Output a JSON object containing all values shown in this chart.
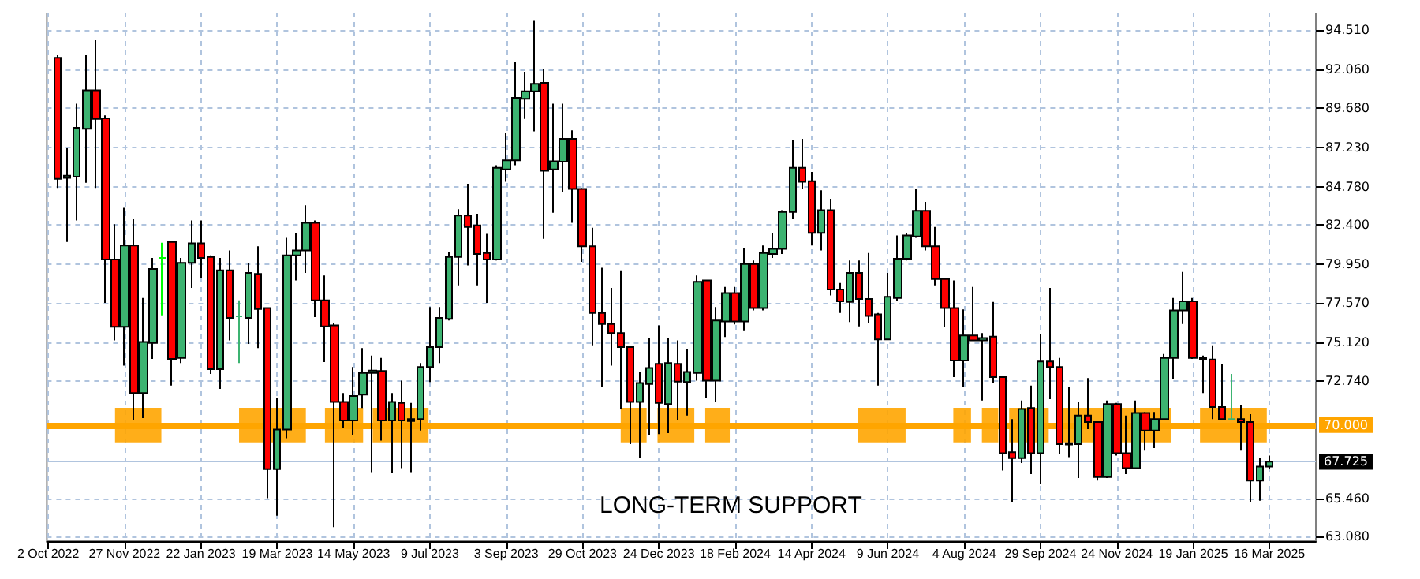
{
  "chart_data": {
    "type": "candlestick",
    "x": [
      "2022-10-09",
      "2022-10-16",
      "2022-10-23",
      "2022-10-30",
      "2022-11-06",
      "2022-11-13",
      "2022-11-20",
      "2022-11-27",
      "2022-12-04",
      "2022-12-11",
      "2022-12-18",
      "2022-12-25",
      "2023-01-01",
      "2023-01-08",
      "2023-01-15",
      "2023-01-22",
      "2023-01-29",
      "2023-02-05",
      "2023-02-12",
      "2023-02-19",
      "2023-02-26",
      "2023-03-05",
      "2023-03-12",
      "2023-03-19",
      "2023-03-26",
      "2023-04-02",
      "2023-04-09",
      "2023-04-16",
      "2023-04-23",
      "2023-04-30",
      "2023-05-07",
      "2023-05-14",
      "2023-05-21",
      "2023-05-28",
      "2023-06-04",
      "2023-06-11",
      "2023-06-18",
      "2023-06-25",
      "2023-07-02",
      "2023-07-09",
      "2023-07-16",
      "2023-07-23",
      "2023-07-30",
      "2023-08-06",
      "2023-08-13",
      "2023-08-20",
      "2023-08-27",
      "2023-09-03",
      "2023-09-10",
      "2023-09-17",
      "2023-09-24",
      "2023-10-01",
      "2023-10-08",
      "2023-10-15",
      "2023-10-22",
      "2023-10-29",
      "2023-11-05",
      "2023-11-12",
      "2023-11-19",
      "2023-11-26",
      "2023-12-03",
      "2023-12-10",
      "2023-12-17",
      "2023-12-24",
      "2023-12-31",
      "2024-01-07",
      "2024-01-14",
      "2024-01-21",
      "2024-01-28",
      "2024-02-04",
      "2024-02-11",
      "2024-02-18",
      "2024-02-25",
      "2024-03-03",
      "2024-03-10",
      "2024-03-17",
      "2024-03-24",
      "2024-03-31",
      "2024-04-07",
      "2024-04-14",
      "2024-04-21",
      "2024-04-28",
      "2024-05-05",
      "2024-05-12",
      "2024-05-19",
      "2024-05-26",
      "2024-06-02",
      "2024-06-09",
      "2024-06-16",
      "2024-06-23",
      "2024-06-30",
      "2024-07-07",
      "2024-07-14",
      "2024-07-21",
      "2024-07-28",
      "2024-08-04",
      "2024-08-11",
      "2024-08-18",
      "2024-08-25",
      "2024-09-01",
      "2024-09-08",
      "2024-09-15",
      "2024-09-22",
      "2024-09-29",
      "2024-10-06",
      "2024-10-13",
      "2024-10-20",
      "2024-10-27",
      "2024-11-03",
      "2024-11-10",
      "2024-11-17",
      "2024-11-24",
      "2024-12-01",
      "2024-12-08",
      "2024-12-15",
      "2024-12-22",
      "2024-12-29",
      "2025-01-05",
      "2025-01-12",
      "2025-01-19",
      "2025-01-26",
      "2025-02-02",
      "2025-02-09",
      "2025-02-16",
      "2025-02-23",
      "2025-03-02",
      "2025-03-09",
      "2025-03-16"
    ],
    "ohlc": [
      [
        92.78,
        92.94,
        84.71,
        85.27
      ],
      [
        85.33,
        87.19,
        81.36,
        85.46
      ],
      [
        85.4,
        89.93,
        82.69,
        88.44
      ],
      [
        88.37,
        92.94,
        85.02,
        90.76
      ],
      [
        90.76,
        93.87,
        84.71,
        88.99
      ],
      [
        89.03,
        89.21,
        77.57,
        80.27
      ],
      [
        80.27,
        82.45,
        75.25,
        76.09
      ],
      [
        76.09,
        83.47,
        73.69,
        81.14
      ],
      [
        81.14,
        82.79,
        70.28,
        71.99
      ],
      [
        71.99,
        77.88,
        70.43,
        75.15
      ],
      [
        75.09,
        80.37,
        74.1,
        79.68
      ],
      [
        80.37,
        81.3,
        76.8,
        80.37
      ],
      [
        81.36,
        81.36,
        72.45,
        74.1
      ],
      [
        74.16,
        80.37,
        73.85,
        80.06
      ],
      [
        80.06,
        82.69,
        78.5,
        81.27
      ],
      [
        81.27,
        82.69,
        79.13,
        80.37
      ],
      [
        80.43,
        80.52,
        73.17,
        73.47
      ],
      [
        73.47,
        80.37,
        72.24,
        79.59
      ],
      [
        79.59,
        80.83,
        75.25,
        76.64
      ],
      [
        76.74,
        77.73,
        73.85,
        76.74
      ],
      [
        76.64,
        80.06,
        75.03,
        79.44
      ],
      [
        79.37,
        81.08,
        74.78,
        77.2
      ],
      [
        77.26,
        77.26,
        65.47,
        67.27
      ],
      [
        67.27,
        71.68,
        64.38,
        69.72
      ],
      [
        69.72,
        81.61,
        69.19,
        80.52
      ],
      [
        80.52,
        81.92,
        78.97,
        80.83
      ],
      [
        80.83,
        83.63,
        79.44,
        82.54
      ],
      [
        82.54,
        82.69,
        76.7,
        77.73
      ],
      [
        77.73,
        79.28,
        73.91,
        76.12
      ],
      [
        76.18,
        76.33,
        63.67,
        71.43
      ],
      [
        71.43,
        71.99,
        69.81,
        70.28
      ],
      [
        70.28,
        73.6,
        69.35,
        71.8
      ],
      [
        71.89,
        74.78,
        71.06,
        73.23
      ],
      [
        73.23,
        74.31,
        67.08,
        73.38
      ],
      [
        73.35,
        74.16,
        69.04,
        70.28
      ],
      [
        70.28,
        71.99,
        67.02,
        71.43
      ],
      [
        71.37,
        72.76,
        67.33,
        70.28
      ],
      [
        70.25,
        71.37,
        67.08,
        70.37
      ],
      [
        70.37,
        73.85,
        69.66,
        73.6
      ],
      [
        73.6,
        77.32,
        72.67,
        74.84
      ],
      [
        74.84,
        77.32,
        73.85,
        76.64
      ],
      [
        76.58,
        80.74,
        76.49,
        80.43
      ],
      [
        80.43,
        83.38,
        78.66,
        83.0
      ],
      [
        83.0,
        84.96,
        79.9,
        82.29
      ],
      [
        82.38,
        83.1,
        78.66,
        80.61
      ],
      [
        80.67,
        81.86,
        77.57,
        80.27
      ],
      [
        80.27,
        86.11,
        80.21,
        85.95
      ],
      [
        85.86,
        88.13,
        85.08,
        86.42
      ],
      [
        86.42,
        92.53,
        86.11,
        90.3
      ],
      [
        90.24,
        91.91,
        88.99,
        90.7
      ],
      [
        90.7,
        95.11,
        88.22,
        91.17
      ],
      [
        91.23,
        92.1,
        81.55,
        85.77
      ],
      [
        85.86,
        89.93,
        83.16,
        86.36
      ],
      [
        86.33,
        89.93,
        84.46,
        87.75
      ],
      [
        87.75,
        88.28,
        82.54,
        84.65
      ],
      [
        84.65,
        84.71,
        80.12,
        81.08
      ],
      [
        81.08,
        82.23,
        74.94,
        76.95
      ],
      [
        76.95,
        79.75,
        72.36,
        76.27
      ],
      [
        76.27,
        78.5,
        73.69,
        75.71
      ],
      [
        75.71,
        79.59,
        70.99,
        74.84
      ],
      [
        74.84,
        74.84,
        68.82,
        71.43
      ],
      [
        71.43,
        73.29,
        67.95,
        72.61
      ],
      [
        72.55,
        75.4,
        69.35,
        73.54
      ],
      [
        73.79,
        76.18,
        69.44,
        71.37
      ],
      [
        71.3,
        75.4,
        69.5,
        73.85
      ],
      [
        73.79,
        75.25,
        70.28,
        72.7
      ],
      [
        72.67,
        74.72,
        70.59,
        73.29
      ],
      [
        73.23,
        79.28,
        72.76,
        78.88
      ],
      [
        78.97,
        78.97,
        71.68,
        72.76
      ],
      [
        72.76,
        77.32,
        71.43,
        76.49
      ],
      [
        76.42,
        78.57,
        75.46,
        78.19
      ],
      [
        78.19,
        78.57,
        76.24,
        76.42
      ],
      [
        76.42,
        80.99,
        75.87,
        79.99
      ],
      [
        79.99,
        80.21,
        77.11,
        77.26
      ],
      [
        77.26,
        81.14,
        77.11,
        80.67
      ],
      [
        80.61,
        81.92,
        80.37,
        80.93
      ],
      [
        80.93,
        83.32,
        80.61,
        83.22
      ],
      [
        83.22,
        87.66,
        82.79,
        85.95
      ],
      [
        85.95,
        87.75,
        84.65,
        85.08
      ],
      [
        85.12,
        85.7,
        81.14,
        81.92
      ],
      [
        81.92,
        84.56,
        80.83,
        83.32
      ],
      [
        83.32,
        84.03,
        78.04,
        78.41
      ],
      [
        78.41,
        78.81,
        76.95,
        77.67
      ],
      [
        77.64,
        80.21,
        76.39,
        79.44
      ],
      [
        79.44,
        80.21,
        76.12,
        77.82
      ],
      [
        77.82,
        80.67,
        76.33,
        76.77
      ],
      [
        76.86,
        76.95,
        72.45,
        75.31
      ],
      [
        75.31,
        79.44,
        75.31,
        77.95
      ],
      [
        77.88,
        81.76,
        77.67,
        80.31
      ],
      [
        80.31,
        81.92,
        80.21,
        81.76
      ],
      [
        81.7,
        84.65,
        81.61,
        83.29
      ],
      [
        83.29,
        83.84,
        80.83,
        81.08
      ],
      [
        81.08,
        82.29,
        78.66,
        79.06
      ],
      [
        79.06,
        79.13,
        76.09,
        77.26
      ],
      [
        77.26,
        78.97,
        72.98,
        74.0
      ],
      [
        74.0,
        77.17,
        72.36,
        75.56
      ],
      [
        75.56,
        78.57,
        75.25,
        75.25
      ],
      [
        75.25,
        75.71,
        71.52,
        75.4
      ],
      [
        75.49,
        77.64,
        72.61,
        72.98
      ],
      [
        72.98,
        72.98,
        67.18,
        68.26
      ],
      [
        68.32,
        70.37,
        65.22,
        67.95
      ],
      [
        67.95,
        71.52,
        67.64,
        70.99
      ],
      [
        71.06,
        72.45,
        66.96,
        68.26
      ],
      [
        68.26,
        75.65,
        66.34,
        73.94
      ],
      [
        73.94,
        78.5,
        71.61,
        73.6
      ],
      [
        73.6,
        74.16,
        68.2,
        68.82
      ],
      [
        68.88,
        72.36,
        68.01,
        68.79
      ],
      [
        68.82,
        71.43,
        66.71,
        70.59
      ],
      [
        70.59,
        72.92,
        69.75,
        70.19
      ],
      [
        70.19,
        70.19,
        66.55,
        66.77
      ],
      [
        66.77,
        71.52,
        66.71,
        71.3
      ],
      [
        71.3,
        71.37,
        68.11,
        68.26
      ],
      [
        68.26,
        70.59,
        66.96,
        67.33
      ],
      [
        67.33,
        71.52,
        67.27,
        70.75
      ],
      [
        70.75,
        70.81,
        68.42,
        69.66
      ],
      [
        69.66,
        70.81,
        68.57,
        70.37
      ],
      [
        70.37,
        74.41,
        70.28,
        74.16
      ],
      [
        74.16,
        77.88,
        72.86,
        77.11
      ],
      [
        77.11,
        79.5,
        76.27,
        77.67
      ],
      [
        77.67,
        77.88,
        74.1,
        74.16
      ],
      [
        74.16,
        74.31,
        71.99,
        74.07
      ],
      [
        74.07,
        74.94,
        70.37,
        71.12
      ],
      [
        71.12,
        73.76,
        70.28,
        70.37
      ],
      [
        70.37,
        73.17,
        70.28,
        70.37
      ],
      [
        70.37,
        71.21,
        68.42,
        70.19
      ],
      [
        70.19,
        70.68,
        65.22,
        66.55
      ],
      [
        66.55,
        67.95,
        65.31,
        67.42
      ],
      [
        67.42,
        68.11,
        67.27,
        67.725
      ]
    ],
    "colors": [
      "#ff0000",
      "#3cb371",
      "#3cb371",
      "#3cb371",
      "#ff0000",
      "#ff0000",
      "#ff0000",
      "#3cb371",
      "#ff0000",
      "#3cb371",
      "#3cb371",
      "#00ff00",
      "#ff0000",
      "#3cb371",
      "#3cb371",
      "#ff0000",
      "#ff0000",
      "#3cb371",
      "#ff0000",
      "#3cb371",
      "#3cb371",
      "#ff0000",
      "#ff0000",
      "#3cb371",
      "#3cb371",
      "#3cb371",
      "#3cb371",
      "#ff0000",
      "#ff0000",
      "#ff0000",
      "#ff0000",
      "#3cb371",
      "#3cb371",
      "#3cb371",
      "#ff0000",
      "#3cb371",
      "#ff0000",
      "#3cb371",
      "#3cb371",
      "#3cb371",
      "#3cb371",
      "#3cb371",
      "#3cb371",
      "#ff0000",
      "#ff0000",
      "#ff0000",
      "#3cb371",
      "#3cb371",
      "#3cb371",
      "#3cb371",
      "#3cb371",
      "#ff0000",
      "#3cb371",
      "#3cb371",
      "#ff0000",
      "#ff0000",
      "#ff0000",
      "#ff0000",
      "#ff0000",
      "#ff0000",
      "#ff0000",
      "#3cb371",
      "#3cb371",
      "#ff0000",
      "#3cb371",
      "#ff0000",
      "#3cb371",
      "#3cb371",
      "#ff0000",
      "#3cb371",
      "#3cb371",
      "#ff0000",
      "#3cb371",
      "#ff0000",
      "#3cb371",
      "#3cb371",
      "#3cb371",
      "#3cb371",
      "#ff0000",
      "#ff0000",
      "#3cb371",
      "#ff0000",
      "#ff0000",
      "#3cb371",
      "#ff0000",
      "#ff0000",
      "#ff0000",
      "#3cb371",
      "#3cb371",
      "#3cb371",
      "#3cb371",
      "#ff0000",
      "#ff0000",
      "#ff0000",
      "#ff0000",
      "#3cb371",
      "#ff0000",
      "#3cb371",
      "#ff0000",
      "#ff0000",
      "#ff0000",
      "#3cb371",
      "#ff0000",
      "#3cb371",
      "#ff0000",
      "#ff0000",
      "#ff0000",
      "#3cb371",
      "#ff0000",
      "#ff0000",
      "#3cb371",
      "#ff0000",
      "#ff0000",
      "#3cb371",
      "#ff0000",
      "#3cb371",
      "#3cb371",
      "#3cb371",
      "#3cb371",
      "#ff0000",
      "#ff0000",
      "#ff0000",
      "#ff0000",
      "#3cb371",
      "#ff0000",
      "#ff0000",
      "#3cb371",
      "#3cb371"
    ],
    "xlim": [
      "2022-10-01",
      "2025-04-19"
    ],
    "xticks": [
      {
        "value": "2022-10-02",
        "label": "2 Oct 2022"
      },
      {
        "value": "2022-11-27",
        "label": "27 Nov 2022"
      },
      {
        "value": "2023-01-22",
        "label": "22 Jan 2023"
      },
      {
        "value": "2023-03-19",
        "label": "19 Mar 2023"
      },
      {
        "value": "2023-05-14",
        "label": "14 May 2023"
      },
      {
        "value": "2023-07-09",
        "label": "9 Jul 2023"
      },
      {
        "value": "2023-09-03",
        "label": "3 Sep 2023"
      },
      {
        "value": "2023-10-29",
        "label": "29 Oct 2023"
      },
      {
        "value": "2023-12-24",
        "label": "24 Dec 2023"
      },
      {
        "value": "2024-02-18",
        "label": "18 Feb 2024"
      },
      {
        "value": "2024-04-14",
        "label": "14 Apr 2024"
      },
      {
        "value": "2024-06-09",
        "label": "9 Jun 2024"
      },
      {
        "value": "2024-08-04",
        "label": "4 Aug 2024"
      },
      {
        "value": "2024-09-29",
        "label": "29 Sep 2024"
      },
      {
        "value": "2024-11-24",
        "label": "24 Nov 2024"
      },
      {
        "value": "2025-01-19",
        "label": "19 Jan 2025"
      },
      {
        "value": "2025-03-16",
        "label": "16 Mar 2025"
      }
    ],
    "ylim": [
      62.8,
      95.58
    ],
    "yticks": [
      {
        "value": 63.08,
        "label": "63.080"
      },
      {
        "value": 65.46,
        "label": "65.460"
      },
      {
        "value": 72.74,
        "label": "72.740"
      },
      {
        "value": 75.12,
        "label": "75.120"
      },
      {
        "value": 77.57,
        "label": "77.570"
      },
      {
        "value": 79.95,
        "label": "79.950"
      },
      {
        "value": 82.4,
        "label": "82.400"
      },
      {
        "value": 84.78,
        "label": "84.780"
      },
      {
        "value": 87.23,
        "label": "87.230"
      },
      {
        "value": 89.68,
        "label": "89.680"
      },
      {
        "value": 92.06,
        "label": "92.060"
      },
      {
        "value": 94.51,
        "label": "94.510"
      }
    ],
    "grid": true,
    "ref_lines": [
      {
        "axis": "y",
        "value": 70.0,
        "label": "70.000",
        "color": "#ffa500"
      },
      {
        "axis": "y",
        "value": 67.725,
        "label": "67.725",
        "color": "#b0c4de"
      }
    ],
    "bands": [
      {
        "axis": "x",
        "from": "2022-11-20",
        "to": "2022-12-24",
        "color": "#ffa500"
      },
      {
        "axis": "x",
        "from": "2023-02-19",
        "to": "2023-04-09",
        "color": "#ffa500"
      },
      {
        "axis": "x",
        "from": "2023-04-23",
        "to": "2023-05-21",
        "color": "#ffa500"
      },
      {
        "axis": "x",
        "from": "2023-05-28",
        "to": "2023-07-08",
        "color": "#ffa500"
      },
      {
        "axis": "x",
        "from": "2023-11-26",
        "to": "2023-12-15",
        "color": "#ffa500"
      },
      {
        "axis": "x",
        "from": "2023-12-23",
        "to": "2024-01-19",
        "color": "#ffa500"
      },
      {
        "axis": "x",
        "from": "2024-01-27",
        "to": "2024-02-14",
        "color": "#ffa500"
      },
      {
        "axis": "x",
        "from": "2024-05-18",
        "to": "2024-06-22",
        "color": "#ffa500"
      },
      {
        "axis": "x",
        "from": "2024-07-27",
        "to": "2024-08-09",
        "color": "#ffa500"
      },
      {
        "axis": "x",
        "from": "2024-08-17",
        "to": "2024-08-29",
        "color": "#ffa500"
      },
      {
        "axis": "x",
        "from": "2024-09-06",
        "to": "2024-10-05",
        "color": "#ffa500"
      },
      {
        "axis": "x",
        "from": "2024-10-13",
        "to": "2025-01-03",
        "color": "#ffa500"
      },
      {
        "axis": "x",
        "from": "2025-01-24",
        "to": "2025-03-14",
        "color": "#ffa500"
      }
    ],
    "annotations": [
      "LONG-TERM SUPPORT"
    ]
  }
}
